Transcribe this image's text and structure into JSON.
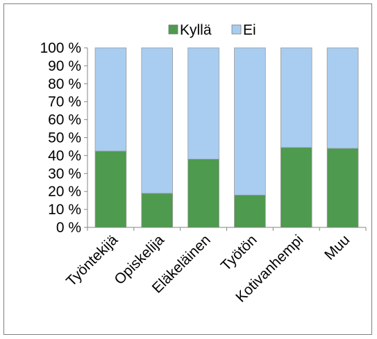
{
  "chart_data": {
    "type": "bar",
    "stacked": true,
    "categories": [
      "Työntekijä",
      "Opiskelija",
      "Eläkeläinen",
      "Työtön",
      "Kotivanhempi",
      "Muu"
    ],
    "series": [
      {
        "name": "Kyllä",
        "color": "#4e9a4e",
        "values": [
          42.5,
          19,
          38,
          18,
          44.5,
          44
        ]
      },
      {
        "name": "Ei",
        "color": "#a8cdf0",
        "values": [
          57.5,
          81,
          62,
          82,
          55.5,
          56
        ]
      }
    ],
    "y_ticks": [
      "0 %",
      "10 %",
      "20 %",
      "30 %",
      "40 %",
      "50 %",
      "60 %",
      "70 %",
      "80 %",
      "90 %",
      "100 %"
    ],
    "ylim": [
      0,
      100
    ],
    "legend_position": "top",
    "grid": false
  }
}
